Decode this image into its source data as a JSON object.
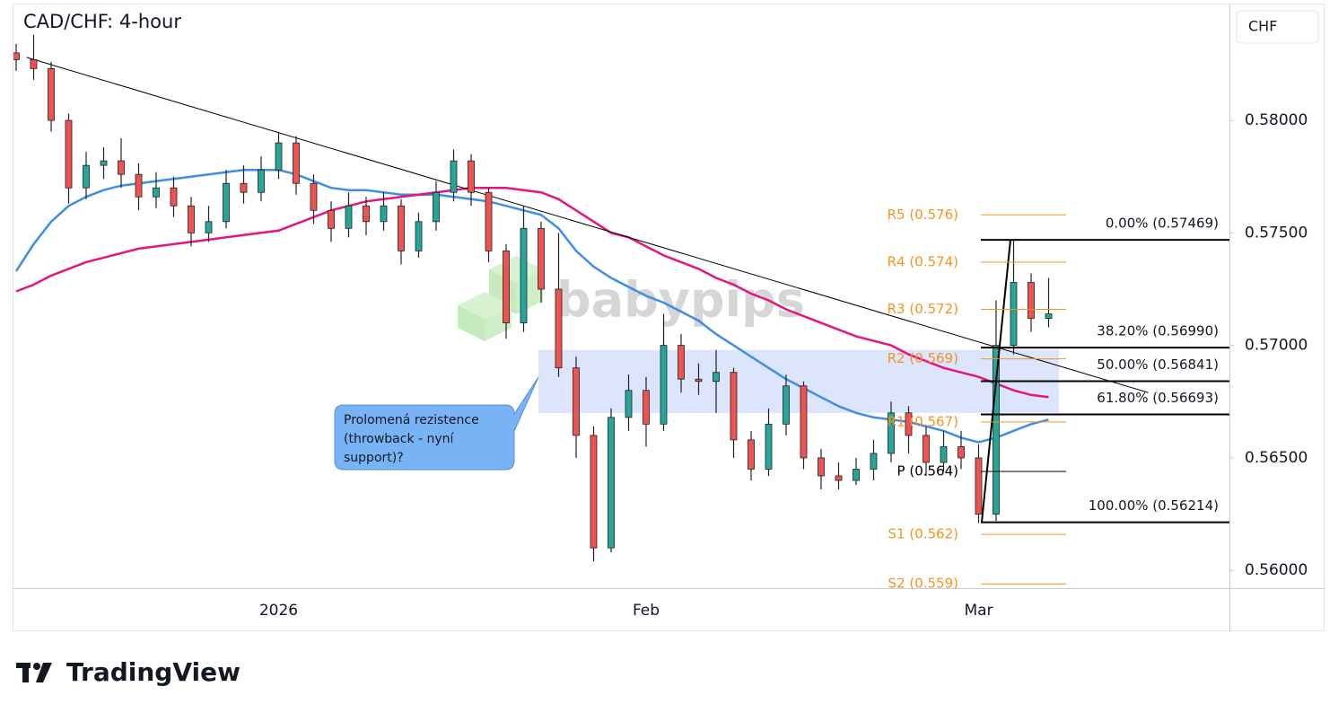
{
  "chart_data": {
    "type": "candlestick",
    "title": "CAD/CHF: 4-hour",
    "currency": "CHF",
    "watermark": "babypips",
    "brand": "TradingView",
    "categories": [
      null,
      null,
      null,
      null,
      null,
      null,
      null,
      null,
      null,
      null,
      null,
      null,
      null,
      null,
      null,
      "2026",
      null,
      null,
      null,
      null,
      null,
      null,
      null,
      null,
      null,
      null,
      null,
      null,
      null,
      null,
      null,
      null,
      null,
      null,
      null,
      null,
      "Feb",
      null,
      null,
      null,
      null,
      null,
      null,
      null,
      null,
      null,
      null,
      null,
      null,
      null,
      null,
      null,
      null,
      null,
      null,
      "Mar",
      null,
      null,
      null,
      null
    ],
    "ohlc": {
      "up_color": "#26a69a",
      "down_color": "#ef5350",
      "open": [
        0.583,
        0.5827,
        0.5823,
        0.58,
        0.577,
        0.578,
        0.5782,
        0.5776,
        0.5766,
        0.577,
        0.5762,
        0.575,
        0.5755,
        0.5772,
        0.5768,
        0.5778,
        0.579,
        0.5772,
        0.576,
        0.5752,
        0.5762,
        0.5755,
        0.5762,
        0.5742,
        0.5755,
        0.5768,
        0.5782,
        0.5768,
        0.5742,
        0.571,
        0.5752,
        0.5725,
        0.569,
        0.566,
        0.561,
        0.5668,
        0.568,
        0.5665,
        0.57,
        0.5685,
        0.5684,
        0.5688,
        0.5658,
        0.5645,
        0.5665,
        0.5682,
        0.565,
        0.5642,
        0.564,
        0.5645,
        0.5652,
        0.567,
        0.566,
        0.5648,
        0.5655,
        0.565,
        0.5625,
        0.57,
        0.5728,
        0.5712
      ],
      "high": [
        0.5834,
        0.5838,
        0.5826,
        0.5803,
        0.5786,
        0.5788,
        0.5792,
        0.5781,
        0.5777,
        0.5775,
        0.5766,
        0.5762,
        0.5778,
        0.578,
        0.5784,
        0.5795,
        0.5793,
        0.5776,
        0.5764,
        0.5768,
        0.5766,
        0.5768,
        0.5765,
        0.5759,
        0.5773,
        0.5787,
        0.5785,
        0.577,
        0.5745,
        0.5762,
        0.5755,
        0.575,
        0.5695,
        0.5664,
        0.5672,
        0.5687,
        0.5686,
        0.5714,
        0.5705,
        0.5692,
        0.5698,
        0.569,
        0.5662,
        0.5672,
        0.5687,
        0.5684,
        0.5654,
        0.5648,
        0.565,
        0.5658,
        0.5675,
        0.5673,
        0.5664,
        0.5662,
        0.5662,
        0.5656,
        0.572,
        0.5747,
        0.5732,
        0.573
      ],
      "low": [
        0.5822,
        0.5818,
        0.5795,
        0.5763,
        0.5765,
        0.5774,
        0.577,
        0.576,
        0.5761,
        0.5757,
        0.5744,
        0.5746,
        0.5752,
        0.5763,
        0.5764,
        0.5774,
        0.5767,
        0.5754,
        0.5746,
        0.5748,
        0.5749,
        0.5751,
        0.5736,
        0.5739,
        0.5751,
        0.5764,
        0.5762,
        0.5737,
        0.5703,
        0.5706,
        0.5719,
        0.5686,
        0.565,
        0.5604,
        0.5608,
        0.5662,
        0.5655,
        0.5662,
        0.5679,
        0.5678,
        0.567,
        0.565,
        0.564,
        0.5642,
        0.566,
        0.5645,
        0.5636,
        0.5636,
        0.5638,
        0.564,
        0.5648,
        0.5652,
        0.5642,
        0.5644,
        0.5645,
        0.5621,
        0.5622,
        0.5696,
        0.5706,
        0.5708
      ],
      "close": [
        0.5827,
        0.5823,
        0.58,
        0.577,
        0.578,
        0.5782,
        0.5776,
        0.5766,
        0.577,
        0.5762,
        0.575,
        0.5755,
        0.5772,
        0.5768,
        0.5778,
        0.579,
        0.5772,
        0.576,
        0.5752,
        0.5762,
        0.5755,
        0.5762,
        0.5742,
        0.5755,
        0.5768,
        0.5782,
        0.5768,
        0.5742,
        0.571,
        0.5752,
        0.5725,
        0.569,
        0.566,
        0.561,
        0.5668,
        0.568,
        0.5665,
        0.57,
        0.5685,
        0.5684,
        0.5688,
        0.5658,
        0.5645,
        0.5665,
        0.5682,
        0.565,
        0.5642,
        0.564,
        0.5645,
        0.5652,
        0.567,
        0.566,
        0.5648,
        0.5655,
        0.565,
        0.5625,
        0.57,
        0.5728,
        0.5712,
        0.5714
      ]
    },
    "series": [
      {
        "color": "#3d8ee8",
        "values": [
          0.5733,
          0.5745,
          0.5755,
          0.5762,
          0.5766,
          0.5769,
          0.5771,
          0.5772,
          0.5773,
          0.5774,
          0.5775,
          0.5776,
          0.5777,
          0.5778,
          0.5778,
          0.5778,
          0.5776,
          0.5773,
          0.577,
          0.5769,
          0.5769,
          0.5768,
          0.5767,
          0.5767,
          0.5767,
          0.5766,
          0.5765,
          0.5764,
          0.5762,
          0.576,
          0.5758,
          0.5752,
          0.5742,
          0.5735,
          0.573,
          0.5726,
          0.5722,
          0.5719,
          0.5715,
          0.5711,
          0.5705,
          0.57,
          0.5695,
          0.569,
          0.5685,
          0.5681,
          0.5677,
          0.5673,
          0.567,
          0.5668,
          0.5667,
          0.5666,
          0.5664,
          0.5662,
          0.5659,
          0.5657,
          0.5659,
          0.5662,
          0.5665,
          0.5667
        ]
      },
      {
        "color": "#e3157f",
        "values": [
          0.5724,
          0.5727,
          0.5731,
          0.5734,
          0.5737,
          0.5739,
          0.5741,
          0.5743,
          0.5744,
          0.5745,
          0.5746,
          0.5747,
          0.5748,
          0.5749,
          0.575,
          0.5751,
          0.5754,
          0.5757,
          0.576,
          0.5762,
          0.5764,
          0.5765,
          0.5766,
          0.5767,
          0.5768,
          0.5769,
          0.577,
          0.577,
          0.577,
          0.5769,
          0.5768,
          0.5765,
          0.576,
          0.5755,
          0.575,
          0.5748,
          0.5744,
          0.574,
          0.5737,
          0.5734,
          0.573,
          0.5727,
          0.5723,
          0.572,
          0.5716,
          0.5713,
          0.571,
          0.5707,
          0.5704,
          0.5702,
          0.57,
          0.5696,
          0.5693,
          0.569,
          0.5688,
          0.5686,
          0.5683,
          0.568,
          0.5678,
          0.5677
        ]
      }
    ],
    "trendline": {
      "x": [
        0.6,
        64.7
      ],
      "values": [
        0.5828,
        0.5679
      ]
    },
    "zone": {
      "top": 0.5698,
      "bottom": 0.567,
      "color": "#d6e0fb"
    },
    "callout": {
      "lines": [
        "Prolomená rezistence",
        "(throwback - nyní",
        "support)?"
      ],
      "color": "#78b4f5"
    },
    "pivots": [
      {
        "value": 0.5758,
        "label": "R5 (0.576)",
        "color": "#f7931a"
      },
      {
        "value": 0.5737,
        "label": "R4 (0.574)",
        "color": "#f7931a"
      },
      {
        "value": 0.5716,
        "label": "R3 (0.572)",
        "color": "#f7931a"
      },
      {
        "value": 0.5694,
        "label": "R2 (0.569)",
        "color": "#f7931a"
      },
      {
        "value": 0.5666,
        "label": "R1 (0.567)",
        "color": "#f7931a"
      },
      {
        "value": 0.5644,
        "label": "P (0.564)",
        "color": "#000000"
      },
      {
        "value": 0.5616,
        "label": "S1 (0.562)",
        "color": "#f7931a"
      },
      {
        "value": 0.5594,
        "label": "S2 (0.559)",
        "color": "#f7931a"
      }
    ],
    "fib_levels": [
      {
        "value": 0.57469,
        "label": "0.00% (0.57469)"
      },
      {
        "value": 0.5699,
        "label": "38.20% (0.56990)"
      },
      {
        "value": 0.56841,
        "label": "50.00% (0.56841)"
      },
      {
        "value": 0.56693,
        "label": "61.80% (0.56693)"
      },
      {
        "value": 0.56214,
        "label": "100.00% (0.56214)"
      }
    ],
    "ylim": [
      0.55921,
      0.58515
    ],
    "yticks": [
      {
        "value": 0.56,
        "label": "0.56000"
      },
      {
        "value": 0.565,
        "label": "0.56500"
      },
      {
        "value": 0.57,
        "label": "0.57000"
      },
      {
        "value": 0.575,
        "label": "0.57500"
      },
      {
        "value": 0.58,
        "label": "0.58000"
      }
    ],
    "grid": false
  }
}
